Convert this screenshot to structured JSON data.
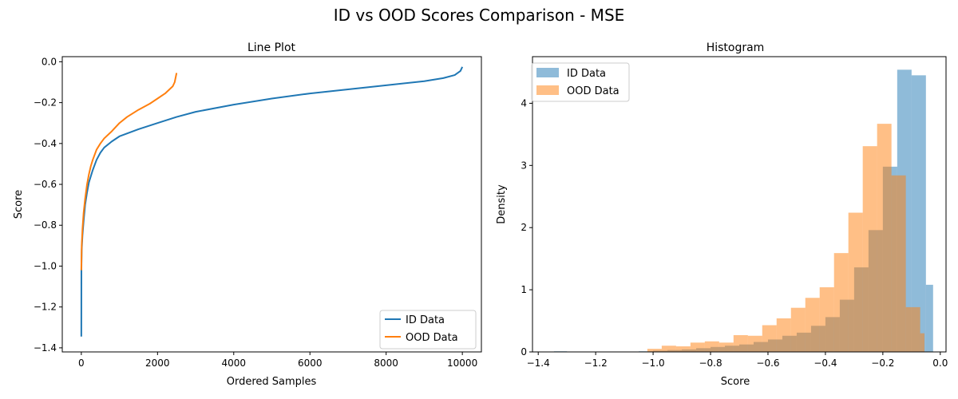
{
  "figure": {
    "title": "ID vs OOD Scores Comparison - MSE"
  },
  "colors": {
    "id": "#1f77b4",
    "ood": "#ff7f0e",
    "id_hist": "#8dbadb",
    "ood_hist": "#ffbe86",
    "overlap": "#c49b75"
  },
  "chart_data": [
    {
      "type": "line",
      "title": "Line Plot",
      "xlabel": "Ordered Samples",
      "ylabel": "Score",
      "xlim": [
        -500,
        10500
      ],
      "ylim": [
        -1.42,
        0.025
      ],
      "xticks": [
        0,
        2000,
        4000,
        6000,
        8000,
        10000
      ],
      "xtick_labels": [
        "0",
        "2000",
        "4000",
        "6000",
        "8000",
        "10000"
      ],
      "yticks": [
        0.0,
        -0.2,
        -0.4,
        -0.6,
        -0.8,
        -1.0,
        -1.2,
        -1.4
      ],
      "ytick_labels": [
        "0.0",
        "−0.2",
        "−0.4",
        "−0.6",
        "−0.8",
        "−1.0",
        "−1.2",
        "−1.4"
      ],
      "legend": {
        "placement": "lower-right"
      },
      "series": [
        {
          "name": "ID Data",
          "x": [
            0,
            2,
            10,
            30,
            60,
            100,
            150,
            200,
            300,
            400,
            500,
            600,
            800,
            1000,
            1500,
            2000,
            2500,
            3000,
            4000,
            5000,
            6000,
            7000,
            8000,
            9000,
            9500,
            9800,
            9950,
            10000
          ],
          "y": [
            -1.345,
            -1.02,
            -0.92,
            -0.85,
            -0.78,
            -0.7,
            -0.64,
            -0.59,
            -0.53,
            -0.48,
            -0.445,
            -0.42,
            -0.39,
            -0.365,
            -0.33,
            -0.3,
            -0.27,
            -0.245,
            -0.21,
            -0.18,
            -0.155,
            -0.135,
            -0.115,
            -0.095,
            -0.08,
            -0.065,
            -0.045,
            -0.025
          ]
        },
        {
          "name": "OOD Data",
          "x": [
            0,
            10,
            30,
            60,
            100,
            150,
            200,
            250,
            300,
            400,
            500,
            600,
            800,
            1000,
            1200,
            1500,
            1800,
            2000,
            2200,
            2400,
            2450,
            2500
          ],
          "y": [
            -1.02,
            -0.9,
            -0.82,
            -0.74,
            -0.67,
            -0.6,
            -0.55,
            -0.51,
            -0.48,
            -0.43,
            -0.4,
            -0.375,
            -0.34,
            -0.3,
            -0.27,
            -0.235,
            -0.205,
            -0.18,
            -0.155,
            -0.12,
            -0.1,
            -0.055
          ]
        }
      ]
    },
    {
      "type": "bar",
      "title": "Histogram",
      "xlabel": "Score",
      "ylabel": "Density",
      "xlim": [
        -1.42,
        0.02
      ],
      "ylim": [
        0,
        4.75
      ],
      "xticks": [
        -1.4,
        -1.2,
        -1.0,
        -0.8,
        -0.6,
        -0.4,
        -0.2,
        0.0
      ],
      "xtick_labels": [
        "−1.4",
        "−1.2",
        "−1.0",
        "−0.8",
        "−0.6",
        "−0.4",
        "−0.2",
        "0.0"
      ],
      "yticks": [
        0,
        1,
        2,
        3,
        4
      ],
      "ytick_labels": [
        "0",
        "1",
        "2",
        "3",
        "4"
      ],
      "legend": {
        "placement": "top-left"
      },
      "series": [
        {
          "name": "ID Data",
          "bin_edges": [
            -1.345,
            -1.3,
            -1.25,
            -1.2,
            -1.15,
            -1.1,
            -1.05,
            -1.0,
            -0.95,
            -0.9,
            -0.85,
            -0.8,
            -0.75,
            -0.7,
            -0.65,
            -0.6,
            -0.55,
            -0.5,
            -0.45,
            -0.4,
            -0.35,
            -0.3,
            -0.25,
            -0.2,
            -0.15,
            -0.1,
            -0.05,
            -0.025
          ],
          "values": [
            0.01,
            0.0,
            0.0,
            0.0,
            0.0,
            0.0,
            0.01,
            0.02,
            0.03,
            0.04,
            0.06,
            0.08,
            0.1,
            0.12,
            0.16,
            0.2,
            0.26,
            0.31,
            0.42,
            0.56,
            0.84,
            1.36,
            1.96,
            2.98,
            4.54,
            4.45,
            1.08
          ]
        },
        {
          "name": "OOD Data",
          "bin_edges": [
            -1.02,
            -0.97,
            -0.92,
            -0.87,
            -0.82,
            -0.77,
            -0.72,
            -0.67,
            -0.62,
            -0.57,
            -0.52,
            -0.47,
            -0.42,
            -0.37,
            -0.32,
            -0.27,
            -0.22,
            -0.17,
            -0.12,
            -0.07,
            -0.055
          ],
          "values": [
            0.05,
            0.1,
            0.09,
            0.15,
            0.17,
            0.15,
            0.27,
            0.26,
            0.43,
            0.54,
            0.71,
            0.87,
            1.04,
            1.59,
            2.24,
            3.31,
            3.67,
            2.84,
            0.72,
            0.3
          ]
        }
      ]
    }
  ]
}
